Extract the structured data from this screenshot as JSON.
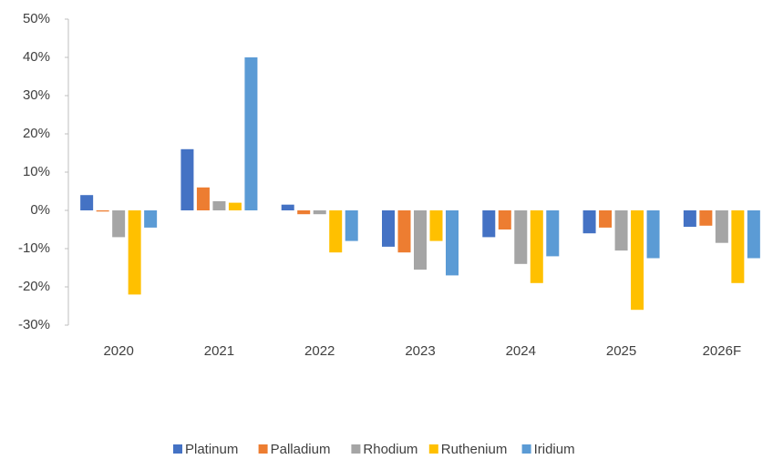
{
  "chart_data": {
    "type": "bar",
    "categories": [
      "2020",
      "2021",
      "2022",
      "2023",
      "2024",
      "2025",
      "2026F"
    ],
    "series": [
      {
        "name": "Platinum",
        "color": "#4472c4",
        "values": [
          4,
          16,
          1.5,
          -9.5,
          -7,
          -6,
          -4.3
        ]
      },
      {
        "name": "Palladium",
        "color": "#ed7d31",
        "values": [
          -0.3,
          6,
          -1,
          -11,
          -5,
          -4.5,
          -4
        ]
      },
      {
        "name": "Rhodium",
        "color": "#a5a5a5",
        "values": [
          -7,
          2.4,
          -1,
          -15.5,
          -14,
          -10.5,
          -8.5
        ]
      },
      {
        "name": "Ruthenium",
        "color": "#ffc000",
        "values": [
          -22,
          2,
          -11,
          -8,
          -19,
          -26,
          -19
        ]
      },
      {
        "name": "Iridium",
        "color": "#5b9bd5",
        "values": [
          -4.5,
          40,
          -8,
          -17,
          -12,
          -12.5,
          -12.5
        ]
      }
    ],
    "ylim": [
      -30,
      50
    ],
    "yticks": [
      {
        "value": -30,
        "label": "-30%"
      },
      {
        "value": -20,
        "label": "-20%"
      },
      {
        "value": -10,
        "label": "-10%"
      },
      {
        "value": 0,
        "label": "0%"
      },
      {
        "value": 10,
        "label": "10%"
      },
      {
        "value": 20,
        "label": "20%"
      },
      {
        "value": 30,
        "label": "30%"
      },
      {
        "value": 40,
        "label": "40%"
      },
      {
        "value": 50,
        "label": "50%"
      }
    ],
    "grid": false,
    "legend": "bottom"
  }
}
